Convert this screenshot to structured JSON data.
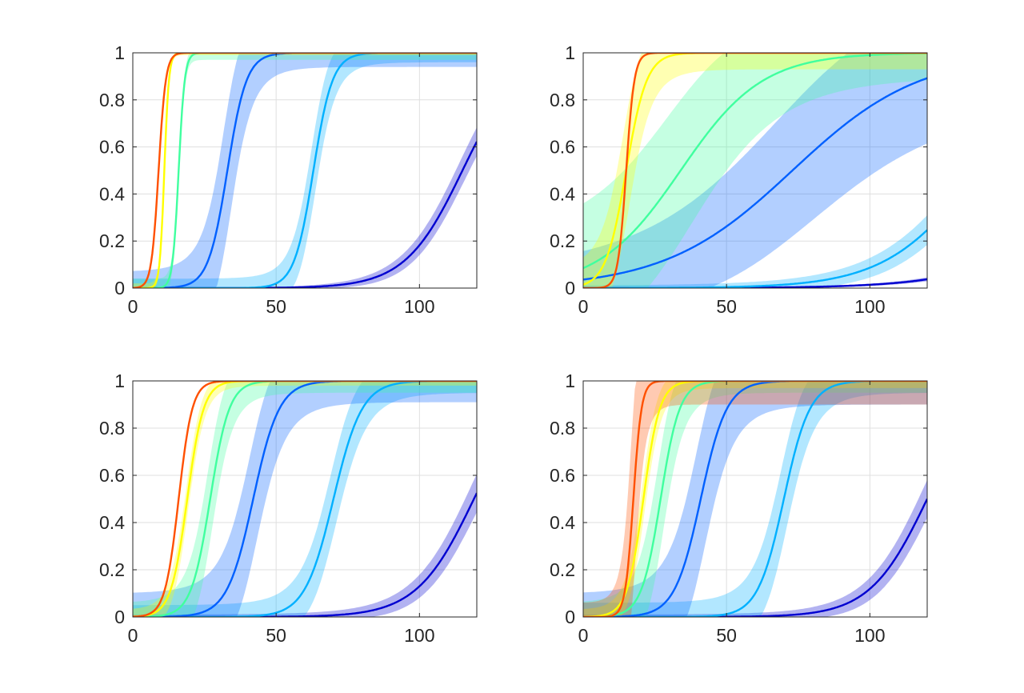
{
  "figure": {
    "layout": "2x2 subplots"
  },
  "chart_data": [
    {
      "type": "line",
      "xlim": [
        0,
        120
      ],
      "ylim": [
        0,
        1
      ],
      "xticks": [
        0,
        50,
        100
      ],
      "yticks": [
        0,
        0.2,
        0.4,
        0.6,
        0.8,
        1
      ],
      "grid": true,
      "series": [
        {
          "color": "#ff5000",
          "midpoint": 9,
          "rate": 0.8,
          "band_lo": 0.0,
          "band_hi": 0.0,
          "band_steep": 0.0
        },
        {
          "color": "#ffff00",
          "midpoint": 11,
          "rate": 1.25,
          "band_lo": 0.02,
          "band_hi": 0.01,
          "band_steep": 0.0
        },
        {
          "color": "#40ff9f",
          "midpoint": 16,
          "rate": 0.95,
          "band_lo": 0.04,
          "band_hi": 0.03,
          "band_steep": 0.0
        },
        {
          "color": "#0060ff",
          "midpoint": 33,
          "rate": 0.3,
          "band_lo": 0.07,
          "band_hi": 0.06,
          "band_steep": 0.2
        },
        {
          "color": "#00b0ff",
          "midpoint": 63,
          "rate": 0.3,
          "band_lo": 0.04,
          "band_hi": 0.04,
          "band_steep": 0.1
        },
        {
          "color": "#0000d0",
          "midpoint": 115,
          "rate": 0.1,
          "band_lo": 0.0,
          "band_hi": 0.02,
          "band_steep": 0.05
        }
      ]
    },
    {
      "type": "line",
      "xlim": [
        0,
        120
      ],
      "ylim": [
        0,
        1
      ],
      "xticks": [
        0,
        50,
        100
      ],
      "yticks": [
        0,
        0.2,
        0.4,
        0.6,
        0.8,
        1
      ],
      "grid": true,
      "series": [
        {
          "color": "#ff5000",
          "midpoint": 15,
          "rate": 0.7,
          "band_lo": 0.0,
          "band_hi": 0.0,
          "band_steep": 0.0
        },
        {
          "color": "#ffff00",
          "midpoint": 15,
          "rate": 0.28,
          "band_lo": 0.08,
          "band_hi": 0.07,
          "band_steep": 0.15
        },
        {
          "color": "#40ff9f",
          "midpoint": 34,
          "rate": 0.07,
          "band_lo": 0.2,
          "band_hi": 0.1,
          "band_steep": 0.15
        },
        {
          "color": "#0060ff",
          "midpoint": 73,
          "rate": 0.045,
          "band_lo": 0.06,
          "band_hi": 0.2,
          "band_steep": 0.15
        },
        {
          "color": "#00b0ff",
          "midpoint": 138,
          "rate": 0.062,
          "band_lo": 0.01,
          "band_hi": 0.05,
          "band_steep": 0.05
        },
        {
          "color": "#0000d0",
          "midpoint": 185,
          "rate": 0.05,
          "band_lo": 0.0,
          "band_hi": 0.02,
          "band_steep": 0.02
        }
      ]
    },
    {
      "type": "line",
      "xlim": [
        0,
        120
      ],
      "ylim": [
        0,
        1
      ],
      "xticks": [
        0,
        50,
        100
      ],
      "yticks": [
        0,
        0.2,
        0.4,
        0.6,
        0.8,
        1
      ],
      "grid": true,
      "series": [
        {
          "color": "#ff5000",
          "midpoint": 16,
          "rate": 0.42,
          "band_lo": 0.0,
          "band_hi": 0.0,
          "band_steep": 0.0
        },
        {
          "color": "#ffff00",
          "midpoint": 19,
          "rate": 0.35,
          "band_lo": 0.03,
          "band_hi": 0.02,
          "band_steep": 0.05
        },
        {
          "color": "#40ff9f",
          "midpoint": 27,
          "rate": 0.3,
          "band_lo": 0.06,
          "band_hi": 0.05,
          "band_steep": 0.12
        },
        {
          "color": "#0060ff",
          "midpoint": 42,
          "rate": 0.22,
          "band_lo": 0.1,
          "band_hi": 0.09,
          "band_steep": 0.15
        },
        {
          "color": "#00b0ff",
          "midpoint": 70,
          "rate": 0.2,
          "band_lo": 0.05,
          "band_hi": 0.05,
          "band_steep": 0.1
        },
        {
          "color": "#0000d0",
          "midpoint": 119,
          "rate": 0.1,
          "band_lo": 0.01,
          "band_hi": 0.05,
          "band_steep": 0.05
        }
      ]
    },
    {
      "type": "line",
      "xlim": [
        0,
        120
      ],
      "ylim": [
        0,
        1
      ],
      "xticks": [
        0,
        50,
        100
      ],
      "yticks": [
        0,
        0.2,
        0.4,
        0.6,
        0.8,
        1
      ],
      "grid": true,
      "series": [
        {
          "color": "#ff5000",
          "midpoint": 17.5,
          "rate": 0.7,
          "band_lo": 0.06,
          "band_hi": 0.1,
          "band_steep": 0.3
        },
        {
          "color": "#ffff00",
          "midpoint": 21,
          "rate": 0.35,
          "band_lo": 0.03,
          "band_hi": 0.03,
          "band_steep": 0.06
        },
        {
          "color": "#40ff9f",
          "midpoint": 27,
          "rate": 0.3,
          "band_lo": 0.06,
          "band_hi": 0.05,
          "band_steep": 0.15
        },
        {
          "color": "#0060ff",
          "midpoint": 41,
          "rate": 0.22,
          "band_lo": 0.1,
          "band_hi": 0.1,
          "band_steep": 0.18
        },
        {
          "color": "#00b0ff",
          "midpoint": 70,
          "rate": 0.22,
          "band_lo": 0.06,
          "band_hi": 0.05,
          "band_steep": 0.12
        },
        {
          "color": "#0000d0",
          "midpoint": 120,
          "rate": 0.1,
          "band_lo": 0.01,
          "band_hi": 0.05,
          "band_steep": 0.05
        }
      ]
    }
  ]
}
